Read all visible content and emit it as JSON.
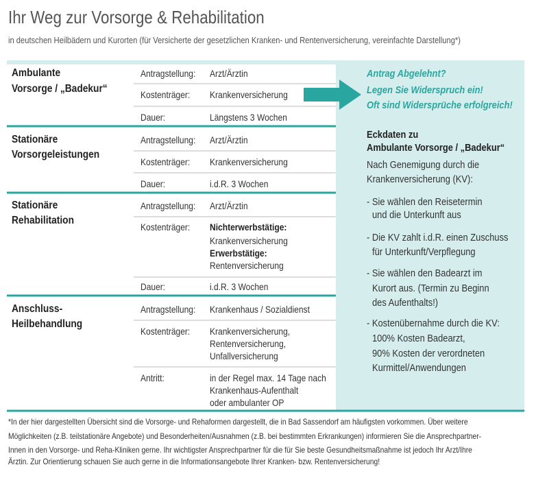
{
  "header": {
    "title": "Ihr Weg zur Vorsorge & Rehabilitation",
    "subtitle": "in deutschen Heilbädern und Kurorten (für Versicherte der gesetzlichen Kranken- und Rentenversicherung, vereinfachte Darstellung*)"
  },
  "sections": [
    {
      "name": [
        "Ambulante",
        "Vorsorge / „Badekur“"
      ],
      "rows": [
        {
          "label": "Antragstellung:",
          "value": [
            "Arzt/Ärztin"
          ]
        },
        {
          "label": "Kostenträger:",
          "value": [
            "Krankenversicherung"
          ]
        },
        {
          "label": "Dauer:",
          "value": [
            "Längstens 3 Wochen"
          ]
        }
      ]
    },
    {
      "name": [
        "Stationäre",
        "Vorsorgeleistungen"
      ],
      "rows": [
        {
          "label": "Antragstellung:",
          "value": [
            "Arzt/Ärztin"
          ]
        },
        {
          "label": "Kostenträger:",
          "value": [
            "Krankenversicherung"
          ]
        },
        {
          "label": "Dauer:",
          "value": [
            "i.d.R. 3 Wochen"
          ]
        }
      ]
    },
    {
      "name": [
        "Stationäre",
        "Rehabilitation"
      ],
      "rows": [
        {
          "label": "Antragstellung:",
          "value": [
            "Arzt/Ärztin"
          ]
        },
        {
          "label": "Kostenträger:",
          "value": [
            {
              "text": "Nichterwerbstätige:",
              "bold": true
            },
            "Krankenversicherung",
            {
              "text": "Erwerbstätige:",
              "bold": true
            },
            "Rentenversicherung"
          ]
        },
        {
          "label": "Dauer:",
          "value": [
            "i.d.R. 3 Wochen"
          ]
        }
      ]
    },
    {
      "name": [
        "Anschluss-",
        "Heilbehandlung"
      ],
      "rows": [
        {
          "label": "Antragstellung:",
          "value": [
            "Krankenhaus / Sozialdienst"
          ]
        },
        {
          "label": "Kostenträger:",
          "value": [
            "Krankenversicherung,",
            "Rentenversicherung,",
            "Unfallversicherung"
          ]
        },
        {
          "label": "Antritt:",
          "value": [
            "in der Regel max. 14 Tage nach",
            "Krankenhaus-Aufenthalt",
            "oder ambulanter OP"
          ]
        }
      ]
    }
  ],
  "callout": [
    "Antrag Abgelehnt?",
    "Legen Sie Widerspruch ein!",
    "Oft sind Widersprüche erfolgreich!"
  ],
  "facts": {
    "heading": [
      "Eckdaten zu",
      "Ambulante Vorsorge / „Badekur“"
    ],
    "intro": [
      "Nach Genemigung durch die",
      "Krankenversicherung (KV):"
    ],
    "items": [
      [
        "- Sie wählen den Reisetermin",
        "und die Unterkunft aus"
      ],
      [
        "- Die KV zahlt i.d.R. einen Zuschuss",
        "für Unterkunft/Verpflegung"
      ],
      [
        "- Sie wählen den Badearzt im",
        "Kurort aus. (Termin zu Beginn",
        "des Aufenthalts!)"
      ],
      [
        "- Kostenübernahme durch die KV:",
        "100% Kosten Badearzt,",
        "90% Kosten der verordneten",
        "Kurmittel/Anwendungen"
      ]
    ]
  },
  "footnote": [
    "*In der hier dargestellten Übersicht sind die Vorsorge- und Rehaformen dargestellt, die in Bad Sassendorf am häufigsten vorkommen. Über weitere",
    "Möglichkeiten (z.B. teilstationäre Angebote) und Besonderheiten/Ausnahmen (z.B. bei bestimmten Erkrankungen) informieren Sie die Ansprechpartner-",
    "Innen in den Vorsorge- und Reha-Kliniken gerne. Ihr wichtigster Ansprechpartner für die für Sie beste Gesundheitsmaßnahme ist jedoch Ihr Arzt/Ihre",
    "Ärztin. Zur Orientierung schauen Sie auch gerne in die Informationsangebote Ihrer Kranken- bzw. Rentenversicherung!"
  ]
}
